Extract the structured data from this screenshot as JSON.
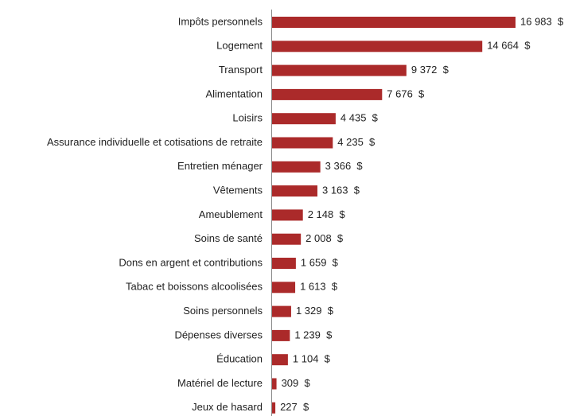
{
  "chart_data": {
    "type": "hbar",
    "categories": [
      "Impôts personnels",
      "Logement",
      "Transport",
      "Alimentation",
      "Loisirs",
      "Assurance individuelle et cotisations de retraite",
      "Entretien ménager",
      "Vêtements",
      "Ameublement",
      "Soins de santé",
      "Dons en argent et contributions",
      "Tabac et boissons alcoolisées",
      "Soins personnels",
      "Dépenses diverses",
      "Éducation",
      "Matériel de lecture",
      "Jeux de hasard"
    ],
    "values": [
      16983,
      14664,
      9372,
      7676,
      4435,
      4235,
      3366,
      3163,
      2148,
      2008,
      1659,
      1613,
      1329,
      1239,
      1104,
      309,
      227
    ],
    "value_labels": [
      "16 983  $",
      "14 664  $",
      "9 372  $",
      "7 676  $",
      "4 435  $",
      "4 235  $",
      "3 366  $",
      "3 163  $",
      "2 148  $",
      "2 008  $",
      "1 659  $",
      "1 613  $",
      "1 329  $",
      "1 239  $",
      "1 104  $",
      "309  $",
      "227  $"
    ],
    "color": "#ab2a2a"
  }
}
